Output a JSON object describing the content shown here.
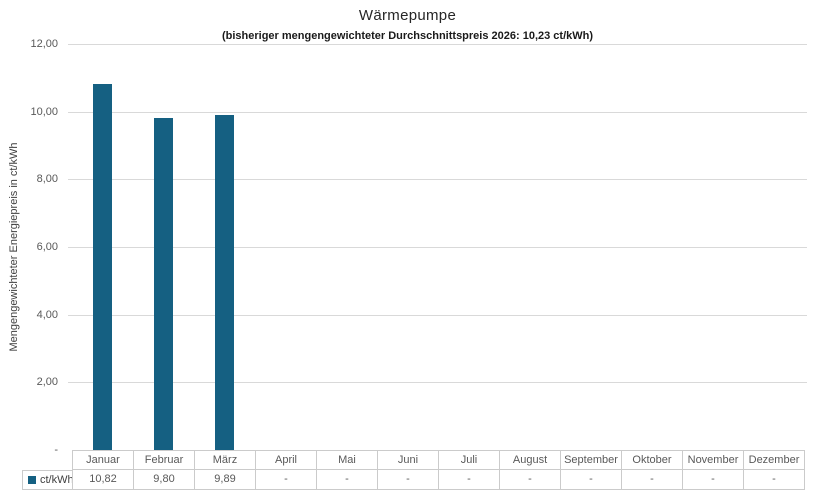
{
  "chart_data": {
    "type": "bar",
    "title": "Wärmepumpe",
    "subtitle": "(bisheriger mengengewichteter Durchschnittspreis 2026: 10,23 ct/kWh)",
    "xlabel": "",
    "ylabel": "Mengengewichteter Energiepreis in ct/kWh",
    "ylim": [
      0,
      12
    ],
    "ytick_values": [
      0,
      2,
      4,
      6,
      8,
      10,
      12
    ],
    "ytick_labels": [
      "-",
      "2,00",
      "4,00",
      "6,00",
      "8,00",
      "10,00",
      "12,00"
    ],
    "categories": [
      "Januar",
      "Februar",
      "März",
      "April",
      "Mai",
      "Juni",
      "Juli",
      "August",
      "September",
      "Oktober",
      "November",
      "Dezember"
    ],
    "series": [
      {
        "name": "ct/kWh",
        "values": [
          10.82,
          9.8,
          9.89,
          null,
          null,
          null,
          null,
          null,
          null,
          null,
          null,
          null
        ],
        "labels": [
          "10,82",
          "9,80",
          "9,89",
          "-",
          "-",
          "-",
          "-",
          "-",
          "-",
          "-",
          "-",
          "-"
        ]
      }
    ],
    "grid": true,
    "legend_position": "table-left",
    "colors": {
      "bar": "#156082",
      "gridline": "#d9d9d9",
      "table_border": "#cbcbcb",
      "axis_text": "#595959",
      "title_text": "#262626"
    }
  }
}
